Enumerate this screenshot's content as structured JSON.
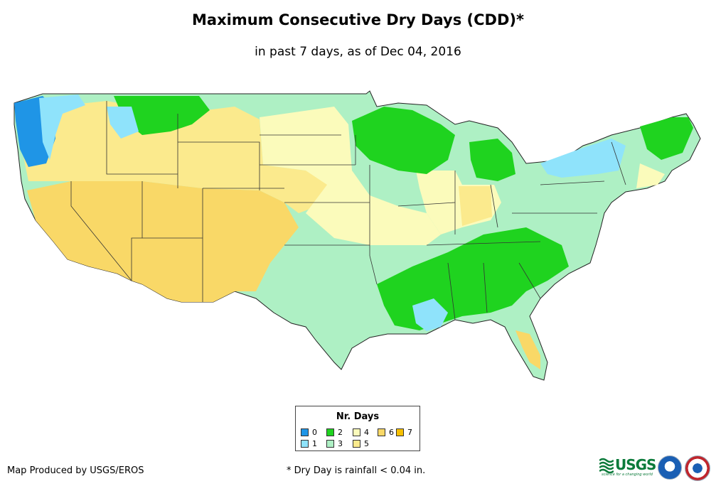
{
  "title": "Maximum Consecutive Dry Days (CDD)*",
  "subtitle": "in past 7 days, as of Dec 04, 2016",
  "legend": {
    "title": "Nr. Days",
    "items": [
      {
        "label": "0",
        "color": "#1f95e6"
      },
      {
        "label": "1",
        "color": "#8fe3fb"
      },
      {
        "label": "2",
        "color": "#1fd31f"
      },
      {
        "label": "3",
        "color": "#aef0c4"
      },
      {
        "label": "4",
        "color": "#fbfbbb"
      },
      {
        "label": "5",
        "color": "#fbea8d"
      },
      {
        "label": "6",
        "color": "#f9d867"
      },
      {
        "label": "7",
        "color": "#f7c000"
      }
    ]
  },
  "credit": "Map Produced by USGS/EROS",
  "footnote": "* Dry Day is rainfall < 0.04 in.",
  "logos": {
    "usgs": "USGS",
    "usgs_tagline": "science for a changing world",
    "noaa": "noaa-logo",
    "nws": "national-weather-service-logo"
  }
}
